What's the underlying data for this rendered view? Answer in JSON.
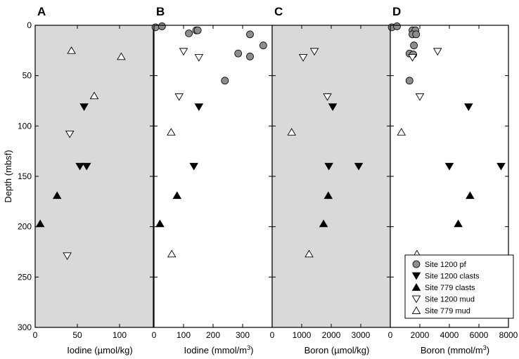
{
  "chart_data": [
    {
      "panel": "A",
      "type": "scatter",
      "shaded": true,
      "xlabel": "Iodine (µmol/kg)",
      "xunit_sup": "",
      "ylabel": "Depth (mbsf)",
      "xlim": [
        0,
        140
      ],
      "ylim": [
        300,
        0
      ],
      "xticks": [
        0,
        50,
        100
      ],
      "yticks": [
        0,
        50,
        100,
        150,
        200,
        250,
        300
      ],
      "series": [
        {
          "name": "Site 1200 clasts",
          "marker": "triangle-down-filled",
          "points": [
            [
              58,
              81
            ],
            [
              53,
              140
            ],
            [
              61,
              140
            ]
          ]
        },
        {
          "name": "Site 779 clasts",
          "marker": "triangle-up-filled",
          "points": [
            [
              26,
              169
            ],
            [
              6,
              197
            ]
          ]
        },
        {
          "name": "Site 1200 mud",
          "marker": "triangle-down-open",
          "points": [
            [
              41,
              108
            ],
            [
              38,
              229
            ]
          ]
        },
        {
          "name": "Site 779 mud",
          "marker": "triangle-up-open",
          "points": [
            [
              43,
              25
            ],
            [
              102,
              31
            ],
            [
              70,
              70
            ]
          ]
        }
      ]
    },
    {
      "panel": "B",
      "type": "scatter",
      "shaded": false,
      "xlabel": "Iodine (mmol/m",
      "xunit_sup": "3",
      "xlim": [
        0,
        400
      ],
      "ylim": [
        300,
        0
      ],
      "xticks": [
        0,
        100,
        200,
        300,
        400
      ],
      "tick_labels": [
        "0",
        "100",
        "200",
        "300"
      ],
      "series": [
        {
          "name": "Site 1200 pf",
          "marker": "circle-gray",
          "points": [
            [
              5,
              2
            ],
            [
              27,
              1
            ],
            [
              118,
              8
            ],
            [
              143,
              5
            ],
            [
              148,
              5
            ],
            [
              325,
              9
            ],
            [
              370,
              20
            ],
            [
              285,
              28
            ],
            [
              325,
              31
            ],
            [
              240,
              55
            ]
          ]
        },
        {
          "name": "Site 1200 clasts",
          "marker": "triangle-down-filled",
          "points": [
            [
              152,
              81
            ],
            [
              135,
              140
            ]
          ]
        },
        {
          "name": "Site 779 clasts",
          "marker": "triangle-up-filled",
          "points": [
            [
              78,
              169
            ],
            [
              20,
              197
            ]
          ]
        },
        {
          "name": "Site 1200 mud",
          "marker": "triangle-down-open",
          "points": [
            [
              100,
              26
            ],
            [
              152,
              32
            ],
            [
              85,
              71
            ]
          ]
        },
        {
          "name": "Site 779 mud",
          "marker": "triangle-up-open",
          "points": [
            [
              58,
              106
            ],
            [
              60,
              227
            ]
          ]
        }
      ]
    },
    {
      "panel": "C",
      "type": "scatter",
      "shaded": true,
      "xlabel": "Boron (µmol/kg)",
      "xunit_sup": "",
      "xlim": [
        0,
        4000
      ],
      "ylim": [
        300,
        0
      ],
      "xticks": [
        0,
        1000,
        2000,
        3000
      ],
      "series": [
        {
          "name": "Site 1200 clasts",
          "marker": "triangle-down-filled",
          "points": [
            [
              2050,
              81
            ],
            [
              1920,
              140
            ],
            [
              2930,
              140
            ]
          ]
        },
        {
          "name": "Site 779 clasts",
          "marker": "triangle-up-filled",
          "points": [
            [
              1900,
              169
            ],
            [
              1740,
              197
            ]
          ]
        },
        {
          "name": "Site 1200 mud",
          "marker": "triangle-down-open",
          "points": [
            [
              1050,
              32
            ],
            [
              1430,
              26
            ],
            [
              1870,
              71
            ]
          ]
        },
        {
          "name": "Site 779 mud",
          "marker": "triangle-up-open",
          "points": [
            [
              660,
              106
            ],
            [
              1250,
              227
            ]
          ]
        }
      ]
    },
    {
      "panel": "D",
      "type": "scatter",
      "shaded": false,
      "xlabel": "Boron (mmol/m",
      "xunit_sup": "3",
      "xlim": [
        0,
        8000
      ],
      "ylim": [
        300,
        0
      ],
      "xticks": [
        0,
        2000,
        4000,
        6000,
        8000
      ],
      "tick_labels": [
        "0",
        "2000",
        "4000",
        "6000",
        "8000"
      ],
      "series": [
        {
          "name": "Site 1200 pf",
          "marker": "circle-gray",
          "points": [
            [
              100,
              2
            ],
            [
              450,
              1
            ],
            [
              1500,
              5
            ],
            [
              1700,
              5
            ],
            [
              1500,
              9
            ],
            [
              1750,
              9
            ],
            [
              1600,
              20
            ],
            [
              1300,
              28
            ],
            [
              1550,
              29
            ],
            [
              1300,
              55
            ]
          ]
        },
        {
          "name": "Site 1200 clasts",
          "marker": "triangle-down-filled",
          "points": [
            [
              5300,
              81
            ],
            [
              4000,
              140
            ],
            [
              7500,
              140
            ]
          ]
        },
        {
          "name": "Site 779 clasts",
          "marker": "triangle-up-filled",
          "points": [
            [
              5400,
              169
            ],
            [
              4600,
              197
            ]
          ]
        },
        {
          "name": "Site 1200 mud",
          "marker": "triangle-down-open",
          "points": [
            [
              1500,
              32
            ],
            [
              3200,
              26
            ],
            [
              2000,
              71
            ]
          ]
        },
        {
          "name": "Site 779 mud",
          "marker": "triangle-up-open",
          "points": [
            [
              750,
              106
            ],
            [
              1800,
              227
            ]
          ]
        }
      ]
    }
  ],
  "legend": {
    "position": "bottom-right",
    "items": [
      {
        "label": "Site 1200 pf",
        "marker": "circle-gray"
      },
      {
        "label": "Site 1200 clasts",
        "marker": "triangle-down-filled"
      },
      {
        "label": "Site 779 clasts",
        "marker": "triangle-up-filled"
      },
      {
        "label": "Site 1200 mud",
        "marker": "triangle-down-open"
      },
      {
        "label": "Site 779 mud",
        "marker": "triangle-up-open"
      }
    ]
  },
  "colors": {
    "shading": "#d9d9d9",
    "circle_fill": "#8c8c8c",
    "filled_marker": "#000000",
    "open_marker_fill": "#ffffff"
  }
}
